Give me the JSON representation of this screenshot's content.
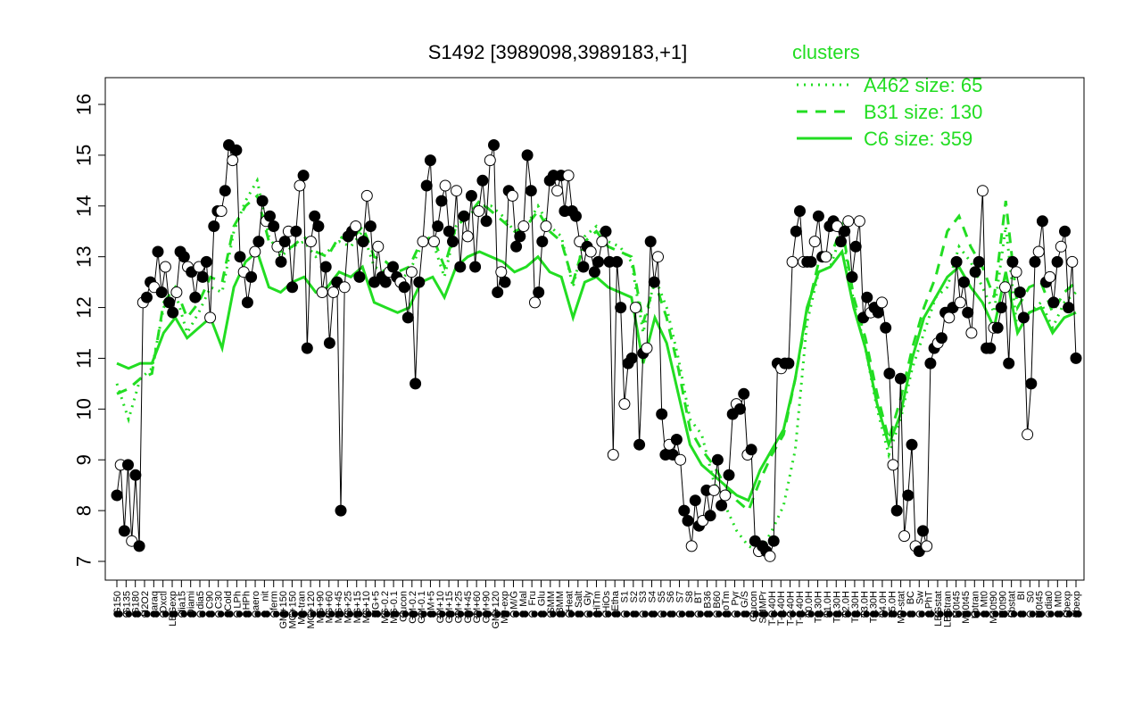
{
  "chart_data": {
    "type": "line",
    "title": "S1492 [3989098,3989183,+1]",
    "xlabel": "",
    "ylabel": "",
    "ylim": [
      7,
      16
    ],
    "yticks": [
      7,
      8,
      9,
      10,
      11,
      12,
      13,
      14,
      15,
      16
    ],
    "grid": false,
    "legend": {
      "title": "clusters",
      "placement": "top-right",
      "entries": [
        {
          "label": "A462 size: 65",
          "style": "dotted",
          "color": "#22dd22"
        },
        {
          "label": "B31 size: 130",
          "style": "dashed",
          "color": "#22dd22"
        },
        {
          "label": "C6 size: 359",
          "style": "solid",
          "color": "#22dd22"
        }
      ]
    },
    "x_tick_labels": [
      "G150",
      "G135",
      "G180",
      "H2O2",
      "Paraq",
      "Oxctl",
      "LBGexp",
      "dia15",
      "Diami",
      "dia5",
      "C90",
      "C30",
      "Cold",
      "LPh",
      "HPh",
      "aero",
      "nit",
      "ferm",
      "GM+150",
      "MG+150",
      "M9-tran",
      "MG+120",
      "MG+90",
      "MG+60",
      "MG+45",
      "MG+25",
      "MG+15",
      "MG+10",
      "MG+5",
      "MG-0.2",
      "MG-0.1",
      "Glucon",
      "GM-0.2",
      "GM-0.1",
      "GM+5",
      "GM+10",
      "GM+15",
      "GM+25",
      "GM+45",
      "GM+60",
      "GM+90",
      "GM+120",
      "M9-exp",
      "M/G",
      "Mal",
      "Fru",
      "Glu",
      "SMM",
      "BMM",
      "Heat",
      "Salt",
      "Gly",
      "HiTm",
      "HiOs",
      "Etha",
      "S1",
      "S2",
      "S3",
      "S4",
      "S5",
      "S6",
      "S7",
      "S8",
      "BT",
      "B36",
      "B60",
      "LoTm",
      "Pyr",
      "G/S",
      "Glucon",
      "SMMPr",
      "T-5.40H",
      "T-3.40H",
      "T-2.40H",
      "T-1.40H",
      "T0.0H",
      "T0.30H",
      "T1.0H",
      "T1.30H",
      "T2.0H",
      "T2.30H",
      "T3.0H",
      "T3.30H",
      "T4.0H",
      "T5.0H",
      "M9-stat",
      "BC",
      "Sw",
      "LPhT",
      "LBGstat",
      "LBGtran",
      "M0t45",
      "M40t45",
      "Lbtran",
      "Mt0",
      "M40t90",
      "M0t90",
      "Lbstat",
      "BI",
      "S0",
      "M0t45",
      "dia0",
      "Mt0",
      "Lbexp",
      "Lbexp"
    ],
    "series": [
      {
        "name": "",
        "style": "markers",
        "color": "#000000",
        "values": [
          8.3,
          8.9,
          7.6,
          8.9,
          7.4,
          8.7,
          7.3,
          12.1,
          12.2,
          12.5,
          12.4,
          13.1,
          12.3,
          12.8,
          12.1,
          11.9,
          12.3,
          13.1,
          13.0,
          12.8,
          12.7,
          12.2,
          12.8,
          12.6,
          12.9,
          11.8,
          13.6,
          13.9,
          13.9,
          14.3,
          15.2,
          14.9,
          15.1,
          13.0,
          12.7,
          12.1,
          12.6,
          13.1,
          13.3,
          14.1,
          13.7,
          13.8,
          13.6,
          13.2,
          12.9,
          13.3,
          13.5,
          12.4,
          13.5,
          14.4,
          14.6,
          11.2,
          13.3,
          13.8,
          13.6,
          12.3,
          12.8,
          11.3,
          12.3,
          12.5,
          8.0,
          12.4,
          13.4,
          13.5,
          13.6,
          12.6,
          13.3,
          14.2,
          13.6,
          12.5,
          13.2,
          12.6,
          12.5,
          12.7,
          12.8,
          12.6,
          12.5,
          12.4,
          11.8,
          12.7,
          10.5,
          12.5,
          13.3,
          14.4,
          14.9,
          13.3,
          13.6,
          14.1,
          14.4,
          13.5,
          13.3,
          14.3,
          12.8,
          13.8,
          13.4,
          14.2,
          12.8,
          13.9,
          14.5,
          13.7,
          14.9,
          15.2,
          12.3,
          12.7,
          12.5,
          14.3,
          14.2,
          13.2,
          13.4,
          13.6,
          15.0,
          14.3,
          12.1,
          12.3,
          13.3,
          13.6,
          14.5,
          14.6,
          14.3,
          14.6,
          13.9,
          14.6,
          13.9,
          13.8,
          13.3,
          12.8,
          13.2,
          13.1,
          12.7,
          12.9,
          13.3,
          13.5,
          12.9,
          9.1,
          12.9,
          12.0,
          10.1,
          10.9,
          11.0,
          12.0,
          9.3,
          11.1,
          11.2,
          13.3,
          12.5,
          13.0,
          9.9,
          9.1,
          9.3,
          9.1,
          9.4,
          9.0,
          8.0,
          7.8,
          7.3,
          8.2,
          7.7,
          7.8,
          8.4,
          7.9,
          8.4,
          9.0,
          8.1,
          8.3,
          8.7,
          9.9,
          10.1,
          10.0,
          10.3,
          9.1,
          9.2,
          7.4,
          7.2,
          7.3,
          7.2,
          7.1,
          7.4,
          10.9,
          10.8,
          10.9,
          10.9,
          12.9,
          13.5,
          13.9,
          12.9,
          12.9,
          12.9,
          13.3,
          13.8,
          13.0,
          13.0,
          13.6,
          13.7,
          13.6,
          13.3,
          13.5,
          13.7,
          12.6,
          13.2,
          13.7,
          11.8,
          12.2,
          11.9,
          12.0,
          11.9,
          12.1,
          11.6,
          10.7,
          8.9,
          8.0,
          10.6,
          7.5,
          8.3,
          9.3,
          7.3,
          7.2,
          7.6,
          7.3,
          10.9,
          11.2,
          11.3,
          11.4,
          11.9,
          11.8,
          12.0,
          12.9,
          12.1,
          12.5,
          11.9,
          11.5,
          12.7,
          12.9,
          14.3,
          11.2,
          11.2,
          11.6,
          11.6,
          12.0,
          12.4,
          10.9,
          12.9,
          12.7,
          12.3,
          11.8,
          9.5,
          10.5,
          12.9,
          13.1,
          13.7,
          12.5,
          12.6,
          12.1,
          12.9,
          13.2,
          13.5,
          12.0,
          12.9,
          11.0
        ]
      },
      {
        "name": "",
        "style": "dotted",
        "color": "#22dd22",
        "values": [
          10.5,
          9.8,
          10.6,
          10.8,
          12.0,
          12.3,
          11.5,
          11.9,
          12.4,
          12.3,
          13.5,
          14.1,
          14.5,
          13.4,
          13.0,
          13.2,
          13.3,
          13.0,
          13.1,
          13.3,
          13.2,
          13.5,
          12.8,
          12.7,
          12.5,
          12.7,
          13.2,
          13.3,
          12.6,
          13.6,
          13.8,
          14.0,
          14.0,
          13.8,
          13.5,
          13.6,
          14.0,
          13.6,
          13.4,
          12.4,
          13.4,
          13.6,
          13.3,
          13.2,
          12.9,
          11.5,
          12.6,
          12.0,
          11.0,
          9.8,
          9.5,
          8.6,
          8.1,
          7.6,
          7.3,
          7.2,
          7.6,
          8.1,
          9.2,
          11.7,
          12.7,
          12.8,
          13.5,
          12.1,
          11.2,
          10.0,
          9.1,
          9.8,
          10.8,
          11.5,
          12.2,
          12.4,
          13.2,
          12.9,
          12.4,
          11.9,
          13.6,
          11.5,
          11.9,
          12.1,
          11.6,
          12.1,
          12.3
        ]
      },
      {
        "name": "",
        "style": "dashed",
        "color": "#22dd22",
        "values": [
          10.3,
          10.4,
          10.6,
          10.7,
          12.1,
          12.4,
          11.8,
          12.1,
          12.6,
          12.5,
          13.6,
          14.0,
          14.2,
          13.3,
          13.1,
          13.2,
          13.4,
          13.1,
          13.0,
          13.4,
          13.3,
          13.6,
          13.0,
          12.9,
          12.7,
          12.8,
          13.3,
          13.4,
          12.8,
          13.6,
          13.8,
          14.1,
          13.9,
          13.7,
          13.5,
          13.6,
          13.9,
          13.5,
          13.3,
          12.5,
          13.3,
          13.5,
          13.2,
          13.1,
          13.0,
          11.7,
          12.5,
          11.8,
          10.8,
          9.6,
          9.2,
          8.9,
          8.5,
          8.2,
          8.0,
          8.6,
          9.1,
          9.5,
          10.6,
          11.9,
          12.9,
          13.0,
          13.6,
          12.2,
          11.4,
          10.3,
          9.4,
          10.2,
          11.2,
          12.0,
          12.6,
          13.5,
          13.8,
          13.2,
          12.8,
          12.2,
          14.1,
          12.0,
          12.4,
          12.5,
          11.9,
          12.3,
          12.5
        ]
      },
      {
        "name": "",
        "style": "solid",
        "color": "#22dd22",
        "values": [
          10.9,
          10.8,
          10.9,
          10.9,
          11.5,
          11.8,
          11.4,
          11.6,
          11.8,
          11.2,
          12.4,
          12.9,
          13.1,
          12.4,
          12.3,
          12.5,
          12.6,
          12.3,
          12.4,
          12.7,
          12.6,
          12.8,
          12.1,
          12.0,
          11.9,
          12.0,
          12.5,
          12.6,
          12.2,
          12.8,
          13.0,
          13.1,
          13.0,
          12.9,
          12.7,
          12.8,
          13.0,
          12.7,
          12.6,
          11.8,
          12.5,
          12.6,
          12.4,
          12.3,
          12.2,
          10.9,
          11.8,
          11.3,
          10.3,
          9.3,
          8.9,
          8.7,
          8.5,
          8.3,
          8.2,
          8.8,
          9.2,
          9.6,
          10.6,
          12.0,
          12.7,
          12.8,
          13.1,
          12.0,
          11.2,
          10.1,
          9.3,
          9.9,
          11.0,
          11.8,
          12.2,
          12.6,
          12.8,
          12.4,
          12.1,
          11.6,
          12.7,
          11.5,
          11.9,
          12.0,
          11.5,
          11.8,
          11.9
        ]
      }
    ]
  }
}
